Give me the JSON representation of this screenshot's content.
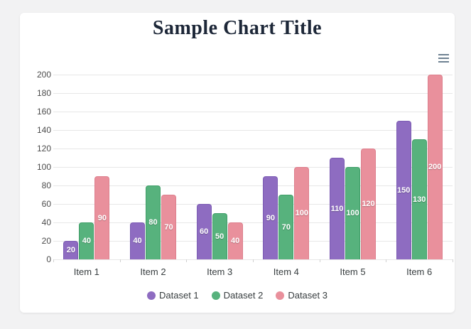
{
  "chart_card": {
    "title": "Sample Chart Title",
    "title_color": "#1d2738",
    "background": "#ffffff",
    "toolbar": {
      "menu_icon": "hamburger-menu-icon",
      "menu_color": "#6e8192"
    }
  },
  "chart_data": {
    "type": "bar",
    "title": "Sample Chart Title",
    "categories": [
      "Item 1",
      "Item 2",
      "Item 3",
      "Item 4",
      "Item 5",
      "Item 6"
    ],
    "series": [
      {
        "name": "Dataset 1",
        "color": "#8e6cc1",
        "border_color": "#7b5bb3",
        "values": [
          20,
          40,
          60,
          90,
          110,
          150
        ]
      },
      {
        "name": "Dataset 2",
        "color": "#57b27d",
        "border_color": "#3f9e68",
        "values": [
          40,
          80,
          50,
          70,
          100,
          130
        ]
      },
      {
        "name": "Dataset 3",
        "color": "#e9909c",
        "border_color": "#dd7f8d",
        "values": [
          90,
          70,
          40,
          100,
          120,
          200
        ]
      }
    ],
    "y_ticks": [
      0,
      20,
      40,
      60,
      80,
      100,
      120,
      140,
      160,
      180,
      200
    ],
    "ylim": [
      0,
      200
    ],
    "xlabel": "",
    "ylabel": "",
    "grid": true,
    "data_labels": true,
    "data_label_position": "center",
    "legend_position": "bottom",
    "legend_marker": "circle"
  }
}
